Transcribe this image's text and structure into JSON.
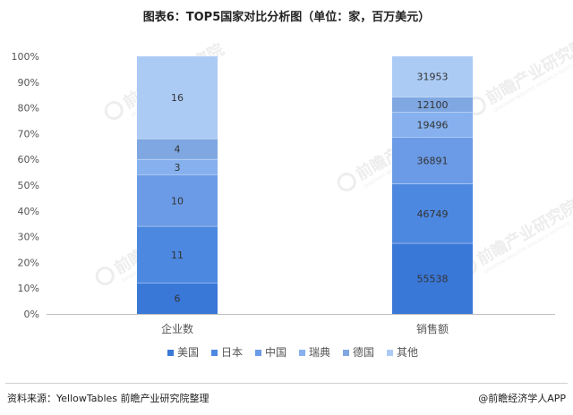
{
  "title": "图表6：TOP5国家对比分析图（单位：家，百万美元）",
  "chart_data": {
    "type": "bar",
    "stacked": true,
    "normalized": true,
    "categories": [
      "企业数",
      "销售额"
    ],
    "series": [
      {
        "name": "美国",
        "color": "#3a78d8",
        "values": [
          6,
          55538
        ]
      },
      {
        "name": "日本",
        "color": "#4d88e0",
        "values": [
          11,
          46749
        ]
      },
      {
        "name": "中国",
        "color": "#6b9be6",
        "values": [
          10,
          36891
        ]
      },
      {
        "name": "瑞典",
        "color": "#86b1ee",
        "values": [
          3,
          19496
        ]
      },
      {
        "name": "德国",
        "color": "#7fa8e2",
        "values": [
          4,
          12100
        ]
      },
      {
        "name": "其他",
        "color": "#abcbf5",
        "values": [
          16,
          31953
        ]
      }
    ],
    "y_ticks": [
      "0%",
      "10%",
      "20%",
      "30%",
      "40%",
      "50%",
      "60%",
      "70%",
      "80%",
      "90%",
      "100%"
    ],
    "ylim": [
      0,
      100
    ],
    "legend_position": "bottom",
    "grid": false
  },
  "watermark": {
    "text": "前瞻产业研究院",
    "subtext": "QIANZHAN INDUSTRY RESEARCH INSTITUTE"
  },
  "footer": {
    "source": "资料来源：YellowTables 前瞻产业研究院整理",
    "brand": "@前瞻经济学人APP"
  }
}
